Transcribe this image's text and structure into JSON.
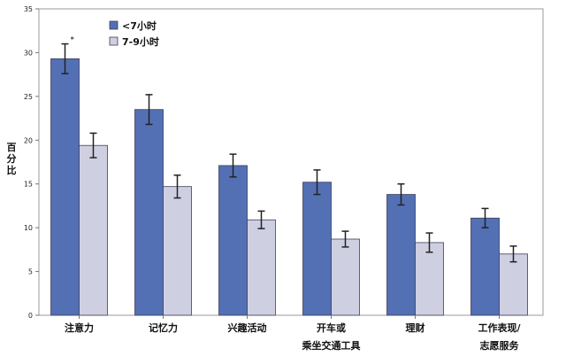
{
  "chart_data": {
    "type": "bar",
    "title": "",
    "ylabel": "百分比",
    "xlabel": "",
    "ylim": [
      0,
      35
    ],
    "yticks": [
      0,
      5,
      10,
      15,
      20,
      25,
      30,
      35
    ],
    "grid": false,
    "legend_position": "top-left",
    "categories": [
      [
        "注意力"
      ],
      [
        "记忆力"
      ],
      [
        "兴趣活动"
      ],
      [
        "开车或",
        "乘坐交通工具"
      ],
      [
        "理财"
      ],
      [
        "工作表现/",
        "志愿服务"
      ]
    ],
    "series": [
      {
        "name": "<7小时",
        "color": "#5470b4",
        "values": [
          29.3,
          23.5,
          17.1,
          15.2,
          13.8,
          11.1
        ],
        "error": [
          1.7,
          1.7,
          1.3,
          1.4,
          1.2,
          1.1
        ]
      },
      {
        "name": "7-9小时",
        "color": "#cfcfe2",
        "values": [
          19.4,
          14.7,
          10.9,
          8.7,
          8.3,
          7.0
        ],
        "error": [
          1.4,
          1.3,
          1.0,
          0.9,
          1.1,
          0.9
        ]
      }
    ],
    "annotations": [
      {
        "text": "*",
        "category_index": 0,
        "series_index": 0
      }
    ]
  }
}
